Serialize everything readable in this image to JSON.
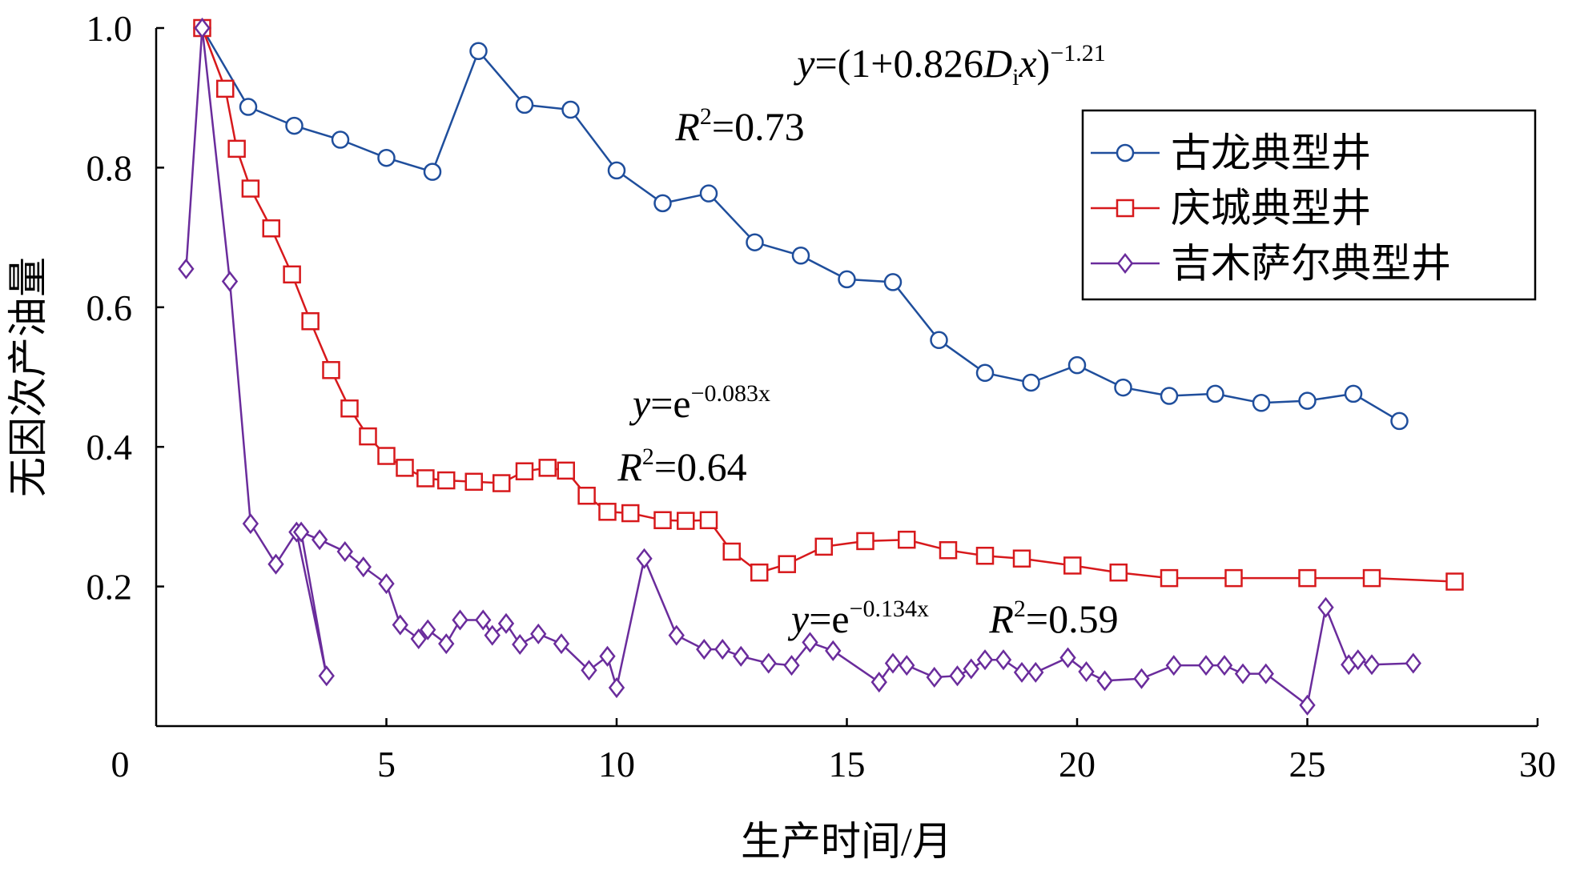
{
  "chart_data": {
    "type": "line",
    "xlabel": "生产时间/月",
    "ylabel": "无因次产油量",
    "xlim": [
      0,
      30
    ],
    "ylim": [
      0,
      1.0
    ],
    "x_ticks": [
      0,
      5,
      10,
      15,
      20,
      25,
      30
    ],
    "y_ticks": [
      0.2,
      0.4,
      0.6,
      0.8,
      1.0
    ],
    "x_tick_labels": [
      "0",
      "5",
      "10",
      "15",
      "20",
      "25",
      "30"
    ],
    "y_tick_labels": [
      "0.2",
      "0.4",
      "0.6",
      "0.8",
      "1.0"
    ],
    "grid": false,
    "legend_position": "top-right",
    "series": [
      {
        "name": "古龙典型井",
        "color": "#1f4e9c",
        "marker": "circle",
        "x": [
          1.0,
          2.0,
          3.0,
          4.0,
          5.0,
          6.0,
          7.0,
          8.0,
          9.0,
          10.0,
          11.0,
          12.0,
          13.0,
          14.0,
          15.0,
          16.0,
          17.0,
          18.0,
          19.0,
          20.0,
          21.0,
          22.0,
          23.0,
          24.0,
          25.0,
          26.0,
          27.0
        ],
        "y": [
          1.0,
          0.887,
          0.86,
          0.84,
          0.814,
          0.794,
          0.967,
          0.89,
          0.883,
          0.796,
          0.749,
          0.763,
          0.693,
          0.674,
          0.64,
          0.636,
          0.553,
          0.506,
          0.492,
          0.517,
          0.485,
          0.473,
          0.476,
          0.463,
          0.466,
          0.476,
          0.437
        ]
      },
      {
        "name": "庆城典型井",
        "color": "#d7191c",
        "marker": "square",
        "x": [
          1.0,
          1.5,
          1.75,
          2.05,
          2.5,
          2.95,
          3.35,
          3.8,
          4.2,
          4.6,
          5.0,
          5.4,
          5.85,
          6.3,
          6.9,
          7.5,
          8.0,
          8.5,
          8.9,
          9.35,
          9.8,
          10.3,
          11.0,
          11.5,
          12.0,
          12.5,
          13.1,
          13.7,
          14.5,
          15.4,
          16.3,
          17.2,
          18.0,
          18.8,
          19.9,
          20.9,
          22.0,
          23.4,
          25.0,
          26.4,
          28.2
        ],
        "y": [
          1.0,
          0.913,
          0.827,
          0.77,
          0.713,
          0.647,
          0.58,
          0.51,
          0.455,
          0.415,
          0.387,
          0.37,
          0.355,
          0.352,
          0.35,
          0.348,
          0.365,
          0.37,
          0.366,
          0.33,
          0.307,
          0.305,
          0.295,
          0.294,
          0.295,
          0.25,
          0.22,
          0.232,
          0.257,
          0.265,
          0.267,
          0.252,
          0.244,
          0.24,
          0.23,
          0.22,
          0.212,
          0.212,
          0.212,
          0.212,
          0.207
        ]
      },
      {
        "name": "吉木萨尔典型井",
        "color": "#6a2c9c",
        "marker": "diamond",
        "x": [
          0.65,
          1.0,
          1.6,
          2.05,
          2.6,
          3.05,
          3.7,
          3.15,
          3.55,
          4.1,
          4.5,
          5.0,
          5.3,
          5.7,
          5.9,
          6.3,
          6.6,
          7.1,
          7.3,
          7.6,
          7.9,
          8.3,
          8.8,
          9.4,
          9.8,
          10.0,
          10.6,
          11.3,
          11.9,
          12.3,
          12.7,
          13.3,
          13.8,
          14.2,
          14.7,
          15.7,
          16.0,
          16.3,
          16.9,
          17.4,
          17.7,
          18.0,
          18.4,
          18.8,
          19.1,
          19.8,
          20.2,
          20.6,
          21.4,
          22.1,
          22.8,
          23.2,
          23.6,
          24.1,
          25.0,
          25.4,
          25.9,
          26.1,
          26.4,
          27.3
        ],
        "y": [
          0.655,
          1.0,
          0.637,
          0.29,
          0.232,
          0.278,
          0.072,
          0.278,
          0.267,
          0.25,
          0.228,
          0.204,
          0.145,
          0.125,
          0.138,
          0.118,
          0.152,
          0.152,
          0.13,
          0.147,
          0.117,
          0.132,
          0.118,
          0.08,
          0.1,
          0.055,
          0.24,
          0.13,
          0.11,
          0.11,
          0.1,
          0.09,
          0.087,
          0.12,
          0.108,
          0.063,
          0.09,
          0.087,
          0.07,
          0.072,
          0.082,
          0.095,
          0.095,
          0.077,
          0.077,
          0.098,
          0.078,
          0.065,
          0.068,
          0.087,
          0.087,
          0.087,
          0.075,
          0.075,
          0.03,
          0.17,
          0.088,
          0.095,
          0.088,
          0.09
        ]
      }
    ],
    "annotations": [
      {
        "parts": [
          {
            "t": "y",
            "style": "italic"
          },
          {
            "t": "=(1+0.826"
          },
          {
            "t": "D",
            "style": "italic"
          },
          {
            "t": "i",
            "style": "sub"
          },
          {
            "t": "x",
            "style": "italic"
          },
          {
            "t": ")"
          },
          {
            "t": "−1.21",
            "style": "sup"
          }
        ]
      },
      {
        "parts": [
          {
            "t": "R",
            "style": "italic"
          },
          {
            "t": "2",
            "style": "sup"
          },
          {
            "t": "=0.73"
          }
        ]
      },
      {
        "parts": [
          {
            "t": "y",
            "style": "italic"
          },
          {
            "t": "=e"
          },
          {
            "t": "−0.083x",
            "style": "sup"
          }
        ]
      },
      {
        "parts": [
          {
            "t": "R",
            "style": "italic"
          },
          {
            "t": "2",
            "style": "sup"
          },
          {
            "t": "=0.64"
          }
        ]
      },
      {
        "parts": [
          {
            "t": "y",
            "style": "italic"
          },
          {
            "t": "=e"
          },
          {
            "t": "−0.134x",
            "style": "sup"
          }
        ]
      },
      {
        "parts": [
          {
            "t": "R",
            "style": "italic"
          },
          {
            "t": "2",
            "style": "sup"
          },
          {
            "t": "=0.59"
          }
        ]
      }
    ]
  }
}
